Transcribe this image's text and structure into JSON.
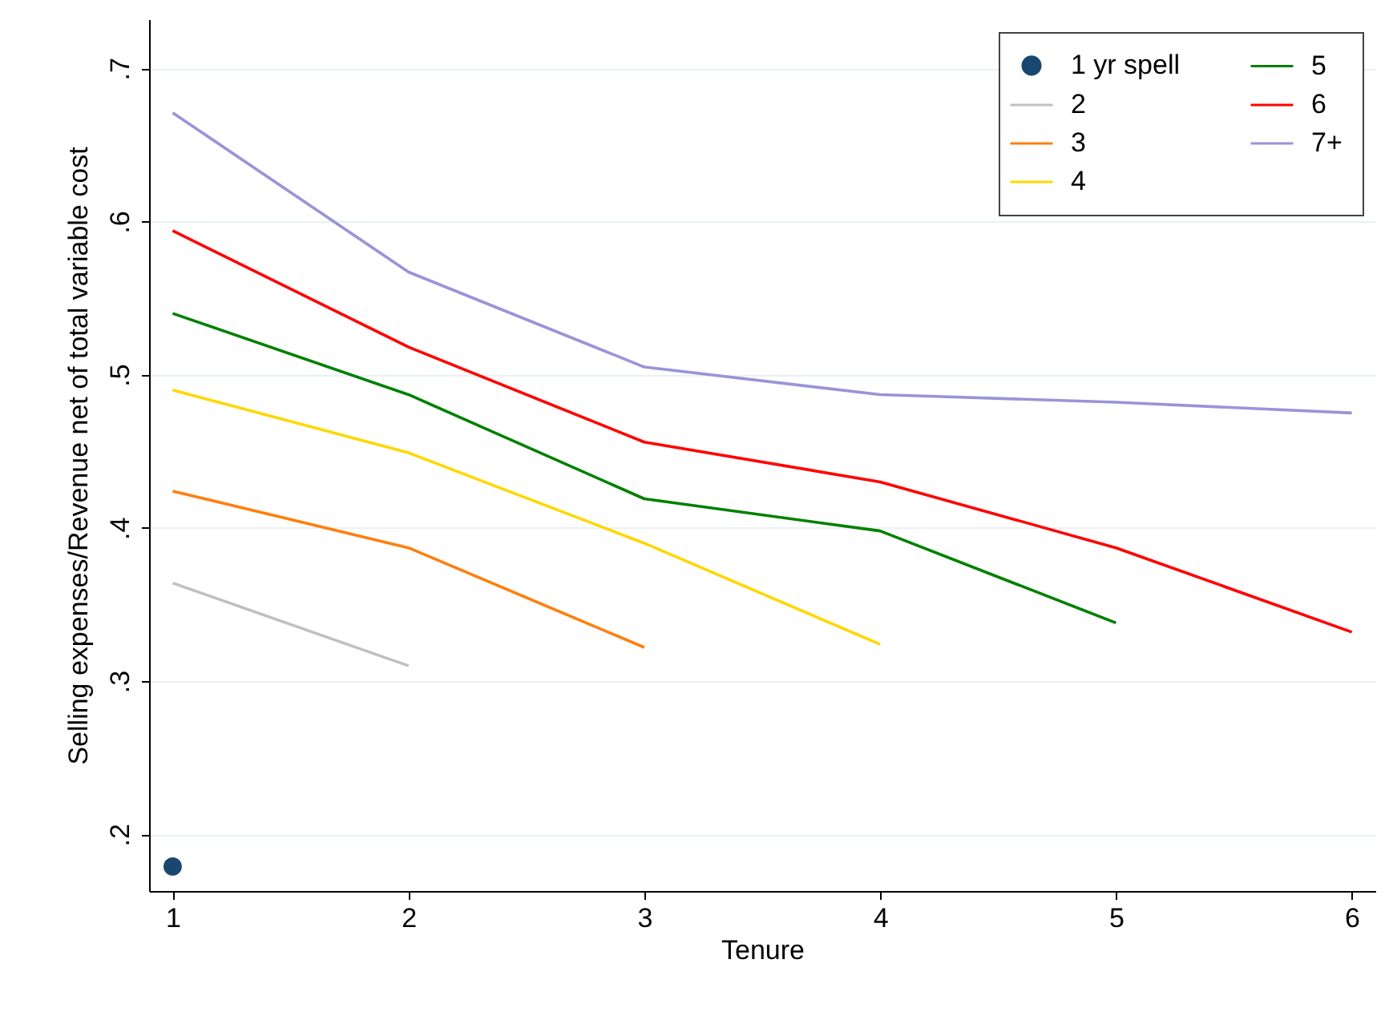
{
  "chart_data": {
    "type": "line",
    "xlabel": "Tenure",
    "ylabel": "Selling expenses/Revenue net of total variable cost",
    "xlim": [
      0.9,
      6.1
    ],
    "xticks": [
      1,
      2,
      3,
      4,
      5,
      6
    ],
    "ylim": [
      0.163,
      0.732
    ],
    "yticks": [
      {
        "value": 0.2,
        "label": ".2"
      },
      {
        "value": 0.3,
        "label": ".3"
      },
      {
        "value": 0.4,
        "label": ".4"
      },
      {
        "value": 0.5,
        "label": ".5"
      },
      {
        "value": 0.6,
        "label": ".6"
      },
      {
        "value": 0.7,
        "label": ".7"
      }
    ],
    "grid": "y",
    "legend": "top right",
    "series": [
      {
        "name": "1 yr spell",
        "type": "scatter",
        "marker": "circle",
        "color": "#1a476f",
        "x": [
          1
        ],
        "values": [
          0.179
        ]
      },
      {
        "name": "2",
        "color": "#c0c0c0",
        "x": [
          1,
          2
        ],
        "values": [
          0.364,
          0.31
        ]
      },
      {
        "name": "3",
        "color": "#ff7f0e",
        "x": [
          1,
          2,
          3
        ],
        "values": [
          0.424,
          0.387,
          0.322
        ]
      },
      {
        "name": "4",
        "color": "#ffd700",
        "x": [
          1,
          2,
          3,
          4
        ],
        "values": [
          0.49,
          0.449,
          0.39,
          0.324
        ]
      },
      {
        "name": "5",
        "color": "#008000",
        "x": [
          1,
          2,
          3,
          4,
          5
        ],
        "values": [
          0.54,
          0.487,
          0.419,
          0.398,
          0.338
        ]
      },
      {
        "name": "6",
        "color": "#ff0000",
        "x": [
          1,
          2,
          3,
          4,
          5,
          6
        ],
        "values": [
          0.594,
          0.518,
          0.456,
          0.43,
          0.387,
          0.332
        ]
      },
      {
        "name": "7+",
        "color": "#9a93d8",
        "x": [
          1,
          2,
          3,
          4,
          5,
          6
        ],
        "values": [
          0.671,
          0.567,
          0.505,
          0.487,
          0.482,
          0.475
        ]
      }
    ]
  }
}
